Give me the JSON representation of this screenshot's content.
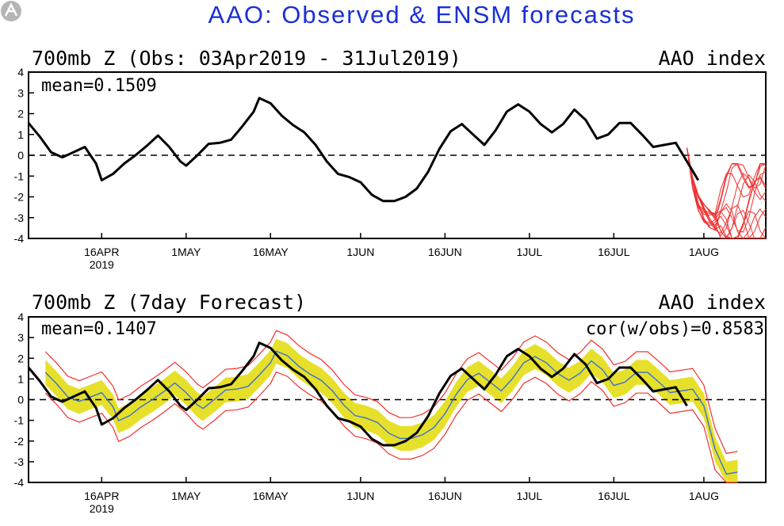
{
  "title": "AAO: Observed & ENSM forecasts",
  "colors": {
    "title": "#1a2fd6",
    "observed": "#000000",
    "ensemble": "#f03030",
    "spread": "#e6e02a",
    "ens_mean": "#3a6fd8"
  },
  "chart_data": [
    {
      "type": "line",
      "title_left": "700mb Z (Obs: 03Apr2019 - 31Jul2019)",
      "title_right": "AAO index",
      "annotation": "mean=0.1509",
      "x_ticks": [
        {
          "date": "2019-04-16",
          "label": "16APR",
          "sublabel": "2019"
        },
        {
          "date": "2019-05-01",
          "label": "1MAY"
        },
        {
          "date": "2019-05-16",
          "label": "16MAY"
        },
        {
          "date": "2019-06-01",
          "label": "1JUN"
        },
        {
          "date": "2019-06-16",
          "label": "16JUN"
        },
        {
          "date": "2019-07-01",
          "label": "1JUL"
        },
        {
          "date": "2019-07-16",
          "label": "16JUL"
        },
        {
          "date": "2019-08-01",
          "label": "1AUG"
        }
      ],
      "xlim": [
        "2019-04-03",
        "2019-08-12"
      ],
      "ylim": [
        -4,
        4
      ],
      "y_ticks": [
        -4,
        -3,
        -2,
        -1,
        0,
        1,
        2,
        3,
        4
      ],
      "y_tick_labels": [
        "-4",
        "-3",
        "-2",
        "-1",
        "0",
        "1",
        "2",
        "3",
        "4"
      ],
      "zero_line": "dashed",
      "series": [
        {
          "role": "observed",
          "points": [
            [
              "2019-04-03",
              1.55
            ],
            [
              "2019-04-05",
              0.9
            ],
            [
              "2019-04-07",
              0.15
            ],
            [
              "2019-04-09",
              -0.1
            ],
            [
              "2019-04-11",
              0.15
            ],
            [
              "2019-04-13",
              0.4
            ],
            [
              "2019-04-15",
              -0.4
            ],
            [
              "2019-04-16",
              -1.2
            ],
            [
              "2019-04-18",
              -0.9
            ],
            [
              "2019-04-20",
              -0.4
            ],
            [
              "2019-04-22",
              0.0
            ],
            [
              "2019-04-24",
              0.45
            ],
            [
              "2019-04-26",
              0.95
            ],
            [
              "2019-04-28",
              0.4
            ],
            [
              "2019-04-30",
              -0.3
            ],
            [
              "2019-05-01",
              -0.5
            ],
            [
              "2019-05-03",
              0.0
            ],
            [
              "2019-05-05",
              0.55
            ],
            [
              "2019-05-07",
              0.6
            ],
            [
              "2019-05-09",
              0.75
            ],
            [
              "2019-05-11",
              1.4
            ],
            [
              "2019-05-13",
              2.1
            ],
            [
              "2019-05-14",
              2.75
            ],
            [
              "2019-05-16",
              2.5
            ],
            [
              "2019-05-18",
              1.9
            ],
            [
              "2019-05-20",
              1.45
            ],
            [
              "2019-05-22",
              1.1
            ],
            [
              "2019-05-24",
              0.5
            ],
            [
              "2019-05-26",
              -0.3
            ],
            [
              "2019-05-28",
              -0.9
            ],
            [
              "2019-05-30",
              -1.05
            ],
            [
              "2019-06-01",
              -1.3
            ],
            [
              "2019-06-03",
              -1.9
            ],
            [
              "2019-06-05",
              -2.2
            ],
            [
              "2019-06-07",
              -2.2
            ],
            [
              "2019-06-09",
              -2.0
            ],
            [
              "2019-06-11",
              -1.6
            ],
            [
              "2019-06-13",
              -0.8
            ],
            [
              "2019-06-15",
              0.3
            ],
            [
              "2019-06-17",
              1.15
            ],
            [
              "2019-06-19",
              1.5
            ],
            [
              "2019-06-21",
              1.0
            ],
            [
              "2019-06-23",
              0.5
            ],
            [
              "2019-06-25",
              1.2
            ],
            [
              "2019-06-27",
              2.1
            ],
            [
              "2019-06-29",
              2.45
            ],
            [
              "2019-07-01",
              2.1
            ],
            [
              "2019-07-03",
              1.5
            ],
            [
              "2019-07-05",
              1.1
            ],
            [
              "2019-07-07",
              1.5
            ],
            [
              "2019-07-09",
              2.2
            ],
            [
              "2019-07-11",
              1.7
            ],
            [
              "2019-07-13",
              0.8
            ],
            [
              "2019-07-15",
              1.0
            ],
            [
              "2019-07-17",
              1.55
            ],
            [
              "2019-07-19",
              1.55
            ],
            [
              "2019-07-21",
              1.0
            ],
            [
              "2019-07-23",
              0.4
            ],
            [
              "2019-07-25",
              0.5
            ],
            [
              "2019-07-27",
              0.6
            ],
            [
              "2019-07-29",
              -0.3
            ],
            [
              "2019-07-31",
              -1.2
            ]
          ]
        }
      ]
    },
    {
      "type": "line",
      "title_left": "700mb Z (7day Forecast)",
      "title_right": "AAO index",
      "annotation": "mean=0.1407",
      "annotation_right": "cor(w/obs)=0.8583",
      "x_ticks": [
        {
          "date": "2019-04-16",
          "label": "16APR",
          "sublabel": "2019"
        },
        {
          "date": "2019-05-01",
          "label": "1MAY"
        },
        {
          "date": "2019-05-16",
          "label": "16MAY"
        },
        {
          "date": "2019-06-01",
          "label": "1JUN"
        },
        {
          "date": "2019-06-16",
          "label": "16JUN"
        },
        {
          "date": "2019-07-01",
          "label": "1JUL"
        },
        {
          "date": "2019-07-16",
          "label": "16JUL"
        },
        {
          "date": "2019-08-01",
          "label": "1AUG"
        }
      ],
      "xlim": [
        "2019-04-03",
        "2019-08-12"
      ],
      "ylim": [
        -4,
        4
      ],
      "y_ticks": [
        -4,
        -3,
        -2,
        -1,
        0,
        1,
        2,
        3,
        4
      ],
      "y_tick_labels": [
        "-4",
        "-3",
        "-2",
        "-1",
        "0",
        "1",
        "2",
        "3",
        "4"
      ],
      "zero_line": "dashed",
      "series": []
    }
  ]
}
